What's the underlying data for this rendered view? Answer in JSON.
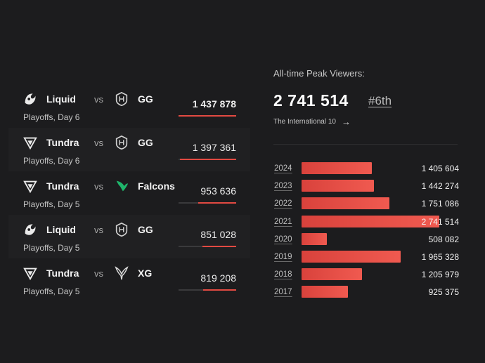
{
  "matches": [
    {
      "team1": "Liquid",
      "team1_logo": "team-liquid-logo-icon",
      "vs": "vs",
      "team2": "GG",
      "team2_logo": "gaimin-gladiators-logo-icon",
      "stage": "Playoffs, Day 6",
      "viewers": "1 437 878",
      "viewers_value": 1437878,
      "bar_fraction": 1.0
    },
    {
      "team1": "Tundra",
      "team1_logo": "tundra-logo-icon",
      "vs": "vs",
      "team2": "GG",
      "team2_logo": "gaimin-gladiators-logo-icon",
      "stage": "Playoffs, Day 6",
      "viewers": "1 397 361",
      "viewers_value": 1397361,
      "bar_fraction": 0.97
    },
    {
      "team1": "Tundra",
      "team1_logo": "tundra-logo-icon",
      "vs": "vs",
      "team2": "Falcons",
      "team2_logo": "falcons-logo-icon",
      "stage": "Playoffs, Day 5",
      "viewers": "953 636",
      "viewers_value": 953636,
      "bar_fraction": 0.66
    },
    {
      "team1": "Liquid",
      "team1_logo": "team-liquid-logo-icon",
      "vs": "vs",
      "team2": "GG",
      "team2_logo": "gaimin-gladiators-logo-icon",
      "stage": "Playoffs, Day 5",
      "viewers": "851 028",
      "viewers_value": 851028,
      "bar_fraction": 0.59
    },
    {
      "team1": "Tundra",
      "team1_logo": "tundra-logo-icon",
      "vs": "vs",
      "team2": "XG",
      "team2_logo": "xtreme-gaming-logo-icon",
      "stage": "Playoffs, Day 5",
      "viewers": "819 208",
      "viewers_value": 819208,
      "bar_fraction": 0.57
    }
  ],
  "peak": {
    "title": "All-time Peak Viewers:",
    "value": "2 741 514",
    "rank": "#6th",
    "event": "The International 10",
    "event_icon": "arrow-right-icon"
  },
  "yearly": [
    {
      "year": "2024",
      "value": "1 405 604",
      "number": 1405604
    },
    {
      "year": "2023",
      "value": "1 442 274",
      "number": 1442274
    },
    {
      "year": "2022",
      "value": "1 751 086",
      "number": 1751086
    },
    {
      "year": "2021",
      "value": "2 741 514",
      "number": 2741514
    },
    {
      "year": "2020",
      "value": "508 082",
      "number": 508082
    },
    {
      "year": "2019",
      "value": "1 965 328",
      "number": 1965328
    },
    {
      "year": "2018",
      "value": "1 205 979",
      "number": 1205979
    },
    {
      "year": "2017",
      "value": "925 375",
      "number": 925375
    }
  ],
  "colors": {
    "background": "#1c1c1e",
    "accent_red": "#e24a42",
    "text": "#ffffff"
  }
}
